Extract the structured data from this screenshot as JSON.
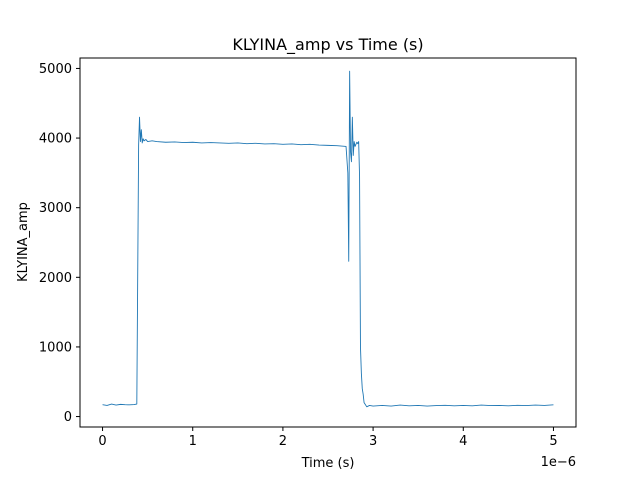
{
  "chart_data": {
    "type": "line",
    "title": "KLYINA_amp vs Time (s)",
    "xlabel": "Time (s)",
    "ylabel": "KLYINA_amp",
    "x_offset_label": "1e−6",
    "xlim": [
      -0.25,
      5.25
    ],
    "ylim": [
      -150,
      5150
    ],
    "xticks": [
      0,
      1,
      2,
      3,
      4,
      5
    ],
    "xtick_labels": [
      "0",
      "1",
      "2",
      "3",
      "4",
      "5"
    ],
    "yticks": [
      0,
      1000,
      2000,
      3000,
      4000,
      5000
    ],
    "ytick_labels": [
      "0",
      "1000",
      "2000",
      "3000",
      "4000",
      "5000"
    ],
    "grid": false,
    "line_color": "#1f77b4",
    "series": [
      {
        "x": [
          0,
          0.05,
          0.1,
          0.15,
          0.2,
          0.25,
          0.3,
          0.35,
          0.38,
          0.4,
          0.41,
          0.42,
          0.43,
          0.44,
          0.45,
          0.46,
          0.48,
          0.5,
          0.55,
          0.6,
          0.7,
          0.8,
          0.9,
          1.0,
          1.1,
          1.2,
          1.3,
          1.4,
          1.5,
          1.6,
          1.7,
          1.8,
          1.9,
          2.0,
          2.1,
          2.2,
          2.3,
          2.4,
          2.5,
          2.6,
          2.65,
          2.7,
          2.72,
          2.73,
          2.74,
          2.75,
          2.76,
          2.77,
          2.78,
          2.79,
          2.8,
          2.82,
          2.83,
          2.84,
          2.85,
          2.86,
          2.87,
          2.88,
          2.89,
          2.9,
          2.91,
          2.93,
          2.96,
          3.0,
          3.1,
          3.2,
          3.3,
          3.4,
          3.5,
          3.6,
          3.7,
          3.8,
          3.9,
          4.0,
          4.1,
          4.2,
          4.3,
          4.4,
          4.5,
          4.6,
          4.7,
          4.8,
          4.9,
          5.0
        ],
        "y": [
          170,
          160,
          180,
          165,
          175,
          170,
          168,
          172,
          180,
          3900,
          4300,
          3950,
          4120,
          3930,
          3990,
          3960,
          3980,
          3950,
          3960,
          3950,
          3940,
          3945,
          3935,
          3940,
          3930,
          3935,
          3930,
          3925,
          3930,
          3920,
          3925,
          3915,
          3920,
          3910,
          3915,
          3905,
          3910,
          3900,
          3895,
          3890,
          3885,
          3880,
          3500,
          2230,
          4960,
          3800,
          3660,
          4300,
          3750,
          3950,
          3880,
          3940,
          3920,
          3950,
          3450,
          1000,
          620,
          400,
          320,
          200,
          180,
          140,
          160,
          150,
          160,
          150,
          165,
          155,
          160,
          150,
          158,
          162,
          155,
          160,
          155,
          165,
          158,
          160,
          155,
          162,
          158,
          165,
          160,
          168
        ]
      }
    ]
  }
}
